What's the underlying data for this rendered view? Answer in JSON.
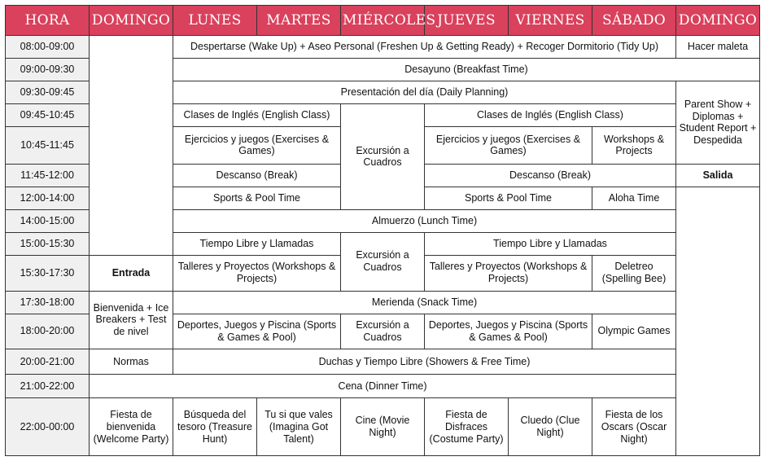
{
  "headers": [
    "HORA",
    "DOMINGO",
    "LUNES",
    "MARTES",
    "MIÉRCOLES",
    "JUEVES",
    "VIERNES",
    "SÁBADO",
    "DOMINGO"
  ],
  "times": [
    "08:00-09:00",
    "09:00-09:30",
    "09:30-09:45",
    "09:45-10:45",
    "10:45-11:45",
    "11:45-12:00",
    "12:00-14:00",
    "14:00-15:00",
    "15:00-15:30",
    "15:30-17:30",
    "17:30-18:00",
    "18:00-20:00",
    "20:00-21:00",
    "21:00-22:00",
    "22:00-00:00"
  ],
  "cells": {
    "wakeup": "Despertarse (Wake Up) + Aseo Personal (Freshen Up & Getting Ready) + Recoger Dormitorio (Tidy Up)",
    "hacer_maleta": "Hacer maleta",
    "desayuno": "Desayuno (Breakfast Time)",
    "presentacion": "Presentación del día (Daily Planning)",
    "parent_show": "Parent Show + Diplomas + Student Report + Despedida",
    "clases_ingles_1": "Clases de Inglés (English Class)",
    "excursion_1": "Excursión a Cuadros",
    "clases_ingles_2": "Clases de Inglés (English Class)",
    "ejercicios_1": "Ejercicios y juegos (Exercises & Games)",
    "ejercicios_2": "Ejercicios y juegos (Exercises & Games)",
    "workshops_projects": "Workshops & Projects",
    "descanso_1": "Descanso (Break)",
    "descanso_2": "Descanso (Break)",
    "salida": "Salida",
    "sports_1": "Sports & Pool Time",
    "sports_2": "Sports & Pool Time",
    "aloha": "Aloha Time",
    "almuerzo": "Almuerzo (Lunch Time)",
    "tiempo_libre_1": "Tiempo Libre y Llamadas",
    "excursion_2": "Excursión a Cuadros",
    "tiempo_libre_2": "Tiempo Libre y Llamadas",
    "entrada": "Entrada",
    "talleres_1": "Talleres y Proyectos (Workshops & Projects)",
    "talleres_2": "Talleres y Proyectos (Workshops & Projects)",
    "deletreo": "Deletreo (Spelling Bee)",
    "bienvenida": "Bienvenida + Ice Breakers + Test de nivel",
    "merienda": "Merienda (Snack Time)",
    "deportes_1": "Deportes, Juegos y Piscina (Sports & Games & Pool)",
    "excursion_3": "Excursión a Cuadros",
    "deportes_2": "Deportes, Juegos y Piscina (Sports & Games & Pool)",
    "olympic": "Olympic Games",
    "normas": "Normas",
    "duchas": "Duchas y Tiempo Libre (Showers & Free Time)",
    "cena": "Cena (Dinner Time)",
    "night_domingo": "Fiesta de bienvenida (Welcome Party)",
    "night_lunes": "Búsqueda del tesoro (Treasure Hunt)",
    "night_martes": "Tu si que vales (Imagina Got Talent)",
    "night_miercoles": "Cine (Movie Night)",
    "night_jueves": "Fiesta de Disfraces (Costume Party)",
    "night_viernes": "Cluedo (Clue Night)",
    "night_sabado": "Fiesta de los Oscars (Oscar Night)"
  }
}
